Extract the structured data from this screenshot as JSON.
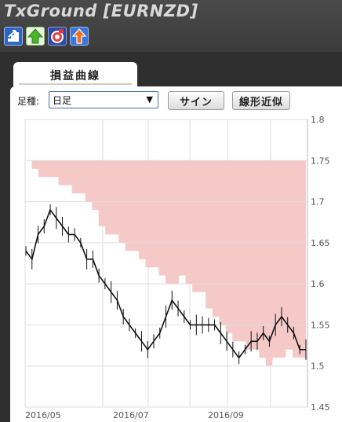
{
  "header": {
    "title": "TxGround [EURNZD]"
  },
  "toolbar": {
    "buttons": [
      {
        "icon": "stairs-up-icon",
        "color": "#3a78d8"
      },
      {
        "icon": "green-tree-arrow-icon",
        "color": "#3fae2a"
      },
      {
        "icon": "globe-flag-icon",
        "color": "#3557b8"
      },
      {
        "icon": "orange-up-arrow-icon",
        "color": "#3a78d8"
      }
    ]
  },
  "tab": {
    "label": "損益曲線"
  },
  "controls": {
    "timeframe_label": "足種:",
    "timeframe_value": "日足",
    "sine_button": "サイン",
    "linear_button": "線形近似"
  },
  "chart_data": {
    "type": "line",
    "x_tick_labels": [
      "2016/05",
      "2016/07",
      "2016/09"
    ],
    "y_tick_labels": [
      "1.8",
      "1.75",
      "1.7",
      "1.65",
      "1.6",
      "1.55",
      "1.5",
      "1.45"
    ],
    "ylim": [
      1.45,
      1.8
    ],
    "grid": true,
    "series": [
      {
        "kind": "drawdown-area",
        "color": "#f6c9c9",
        "values": [
          1.75,
          1.74,
          1.73,
          1.73,
          1.73,
          1.72,
          1.72,
          1.71,
          1.71,
          1.7,
          1.69,
          1.67,
          1.66,
          1.66,
          1.65,
          1.64,
          1.64,
          1.63,
          1.62,
          1.62,
          1.61,
          1.6,
          1.6,
          1.61,
          1.6,
          1.59,
          1.59,
          1.57,
          1.56,
          1.55,
          1.54,
          1.53,
          1.53,
          1.52,
          1.52,
          1.51,
          1.5,
          1.51,
          1.51,
          1.52,
          1.51,
          1.51
        ]
      },
      {
        "kind": "price",
        "color": "#111111",
        "values": [
          1.64,
          1.63,
          1.66,
          1.67,
          1.69,
          1.68,
          1.67,
          1.66,
          1.66,
          1.65,
          1.63,
          1.63,
          1.61,
          1.6,
          1.59,
          1.58,
          1.56,
          1.55,
          1.54,
          1.53,
          1.52,
          1.53,
          1.54,
          1.56,
          1.58,
          1.57,
          1.56,
          1.55,
          1.55,
          1.55,
          1.55,
          1.55,
          1.54,
          1.53,
          1.52,
          1.51,
          1.52,
          1.53,
          1.53,
          1.54,
          1.53,
          1.55,
          1.56,
          1.55,
          1.54,
          1.52,
          1.52
        ]
      }
    ]
  }
}
